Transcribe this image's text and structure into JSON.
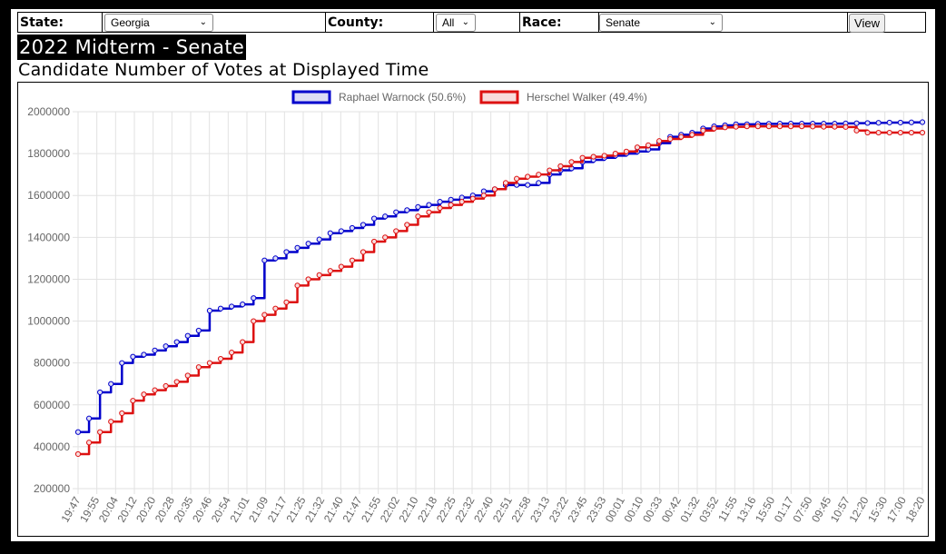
{
  "controls": {
    "state_label": "State:",
    "state_value": "Georgia",
    "county_label": "County:",
    "county_value": "All",
    "race_label": "Race:",
    "race_value": "Senate",
    "view_label": "View"
  },
  "page_title": "2022 Midterm - Senate",
  "chart_data": {
    "type": "line",
    "title": "Candidate Number of Votes at Displayed Time",
    "xlabel": "",
    "ylabel": "",
    "ylim": [
      200000,
      2000000
    ],
    "y_ticks": [
      2000000,
      1800000,
      1600000,
      1400000,
      1200000,
      1000000,
      800000,
      600000,
      400000,
      200000
    ],
    "grid": true,
    "legend_position": "top-center",
    "x_tick_labels": [
      "19:47",
      "19:55",
      "20:04",
      "20:12",
      "20:20",
      "20:28",
      "20:35",
      "20:46",
      "20:54",
      "21:01",
      "21:09",
      "21:17",
      "21:25",
      "21:32",
      "21:40",
      "21:47",
      "21:55",
      "22:02",
      "22:10",
      "22:18",
      "22:25",
      "22:32",
      "22:40",
      "22:51",
      "22:58",
      "23:13",
      "23:22",
      "23:45",
      "23:53",
      "00:01",
      "00:10",
      "00:33",
      "00:42",
      "01:32",
      "03:52",
      "11:55",
      "13:16",
      "15:50",
      "01:17",
      "07:50",
      "09:45",
      "10:57",
      "12:20",
      "15:30",
      "17:00",
      "18:20"
    ],
    "series": [
      {
        "name": "Raphael Warnock (50.6%)",
        "color": "#0000cc",
        "fill": "#dcdcf5",
        "values": [
          470000,
          535000,
          660000,
          700000,
          800000,
          830000,
          840000,
          860000,
          880000,
          900000,
          930000,
          955000,
          1050000,
          1060000,
          1070000,
          1080000,
          1110000,
          1290000,
          1300000,
          1330000,
          1350000,
          1370000,
          1390000,
          1420000,
          1430000,
          1445000,
          1460000,
          1490000,
          1500000,
          1520000,
          1530000,
          1545000,
          1555000,
          1570000,
          1580000,
          1590000,
          1600000,
          1620000,
          1630000,
          1650000,
          1650000,
          1650000,
          1660000,
          1700000,
          1720000,
          1730000,
          1760000,
          1770000,
          1780000,
          1790000,
          1800000,
          1810000,
          1820000,
          1850000,
          1880000,
          1890000,
          1900000,
          1920000,
          1930000,
          1935000,
          1940000,
          1940000,
          1942000,
          1942000,
          1943000,
          1943000,
          1943000,
          1943000,
          1943000,
          1943000,
          1944000,
          1945000,
          1946000,
          1947000,
          1948000,
          1948000,
          1949000,
          1950000
        ]
      },
      {
        "name": "Herschel Walker (49.4%)",
        "color": "#dd1111",
        "fill": "#f8dcdc",
        "values": [
          365000,
          420000,
          470000,
          520000,
          560000,
          620000,
          650000,
          670000,
          690000,
          710000,
          740000,
          780000,
          800000,
          820000,
          850000,
          900000,
          1000000,
          1030000,
          1060000,
          1090000,
          1170000,
          1200000,
          1220000,
          1240000,
          1260000,
          1290000,
          1330000,
          1380000,
          1400000,
          1430000,
          1460000,
          1500000,
          1520000,
          1540000,
          1555000,
          1570000,
          1585000,
          1600000,
          1630000,
          1660000,
          1680000,
          1690000,
          1700000,
          1720000,
          1740000,
          1760000,
          1780000,
          1785000,
          1790000,
          1800000,
          1810000,
          1830000,
          1840000,
          1860000,
          1870000,
          1880000,
          1890000,
          1910000,
          1920000,
          1925000,
          1928000,
          1930000,
          1930000,
          1930000,
          1930000,
          1930000,
          1930000,
          1929000,
          1928000,
          1928000,
          1927000,
          1910000,
          1900000,
          1900000,
          1900000,
          1900000,
          1900000,
          1900000
        ]
      }
    ]
  }
}
